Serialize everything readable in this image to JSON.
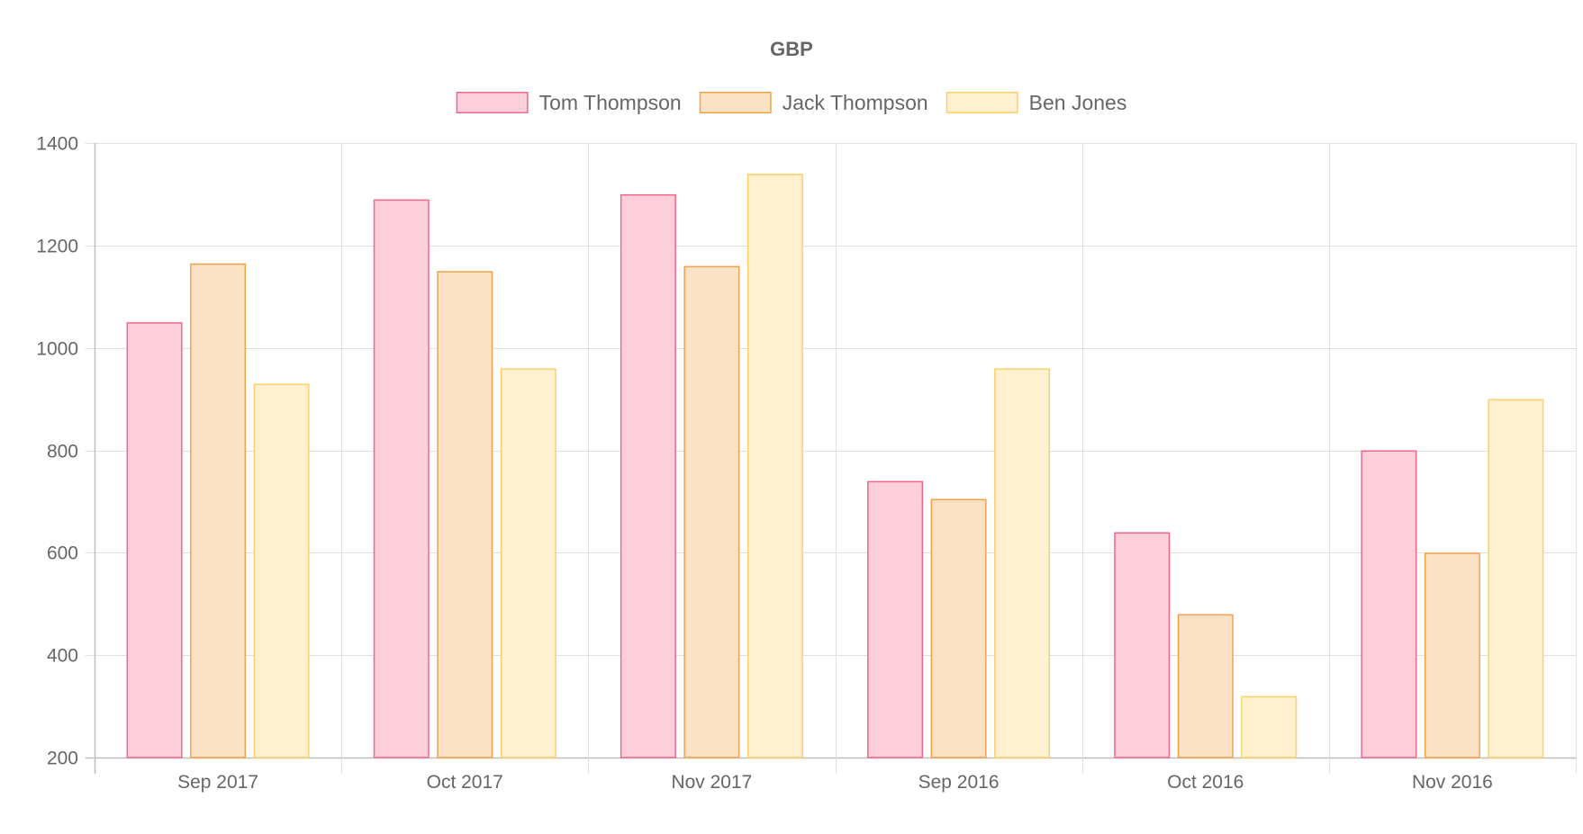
{
  "chart_data": {
    "type": "bar",
    "title": "GBP",
    "categories": [
      "Sep 2017",
      "Oct 2017",
      "Nov 2017",
      "Sep 2016",
      "Oct 2016",
      "Nov 2016"
    ],
    "series": [
      {
        "name": "Tom Thompson",
        "values": [
          1050,
          1290,
          1300,
          740,
          640,
          800
        ],
        "fill": "#fdcfdb",
        "stroke": "#f0678a"
      },
      {
        "name": "Jack Thompson",
        "values": [
          1165,
          1150,
          1160,
          705,
          480,
          600
        ],
        "fill": "#fbe1c6",
        "stroke": "#f4a24a"
      },
      {
        "name": "Ben Jones",
        "values": [
          930,
          960,
          1340,
          960,
          320,
          900
        ],
        "fill": "#fff0cf",
        "stroke": "#fdd069"
      }
    ],
    "ylim": [
      200,
      1400
    ],
    "yticks": [
      "200",
      "400",
      "600",
      "800",
      "1000",
      "1200",
      "1400"
    ],
    "grid": true,
    "legend_position": "top",
    "colors": {
      "text": "#666666",
      "grid": "#e0e0e0",
      "axis": "#bdbdbd"
    }
  }
}
